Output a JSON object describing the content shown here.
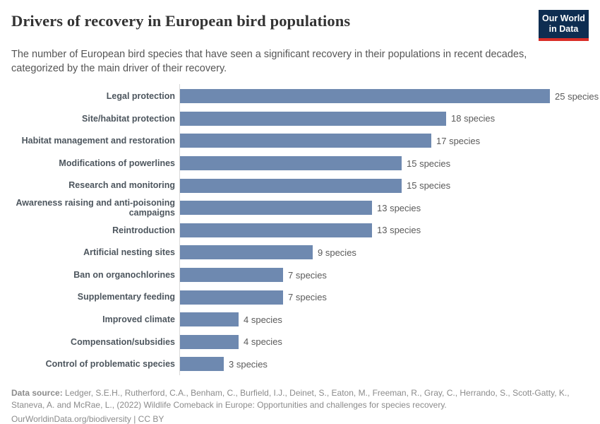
{
  "header": {
    "title": "Drivers of recovery in European bird populations",
    "subtitle": "The number of European bird species that have seen a significant recovery in their populations in recent decades, categorized by the main driver of their recovery.",
    "logo": {
      "line1": "Our World",
      "line2": "in Data",
      "bg_color": "#0e2d51",
      "stripe_color": "#d92d27"
    }
  },
  "chart_data": {
    "type": "bar",
    "orientation": "horizontal",
    "title": "Drivers of recovery in European bird populations",
    "unit": "species",
    "categories": [
      "Legal protection",
      "Site/habitat protection",
      "Habitat management and restoration",
      "Modifications of powerlines",
      "Research and monitoring",
      "Awareness raising and anti-poisoning campaigns",
      "Reintroduction",
      "Artificial nesting sites",
      "Ban on organochlorines",
      "Supplementary feeding",
      "Improved climate",
      "Compensation/subsidies",
      "Control of problematic species"
    ],
    "values": [
      25,
      18,
      17,
      15,
      15,
      13,
      13,
      9,
      7,
      7,
      4,
      4,
      3
    ],
    "value_labels": [
      "25 species",
      "18 species",
      "17 species",
      "15 species",
      "15 species",
      "13 species",
      "13 species",
      "9 species",
      "7 species",
      "7 species",
      "4 species",
      "4 species",
      "3 species"
    ],
    "bar_color": "#6e89b0",
    "xlim": [
      0,
      25
    ],
    "grid": false,
    "legend": "none"
  },
  "footer": {
    "source_label": "Data source:",
    "source_text": " Ledger, S.E.H., Rutherford, C.A., Benham, C., Burfield, I.J., Deinet, S., Eaton, M., Freeman, R., Gray, C., Herrando, S., Scott-Gatty, K., Staneva, A. and McRae, L., (2022) Wildlife Comeback in Europe: Opportunities and challenges for species recovery.",
    "link_text": "OurWorldinData.org/biodiversity",
    "separator": " | ",
    "license_text": "CC BY"
  }
}
